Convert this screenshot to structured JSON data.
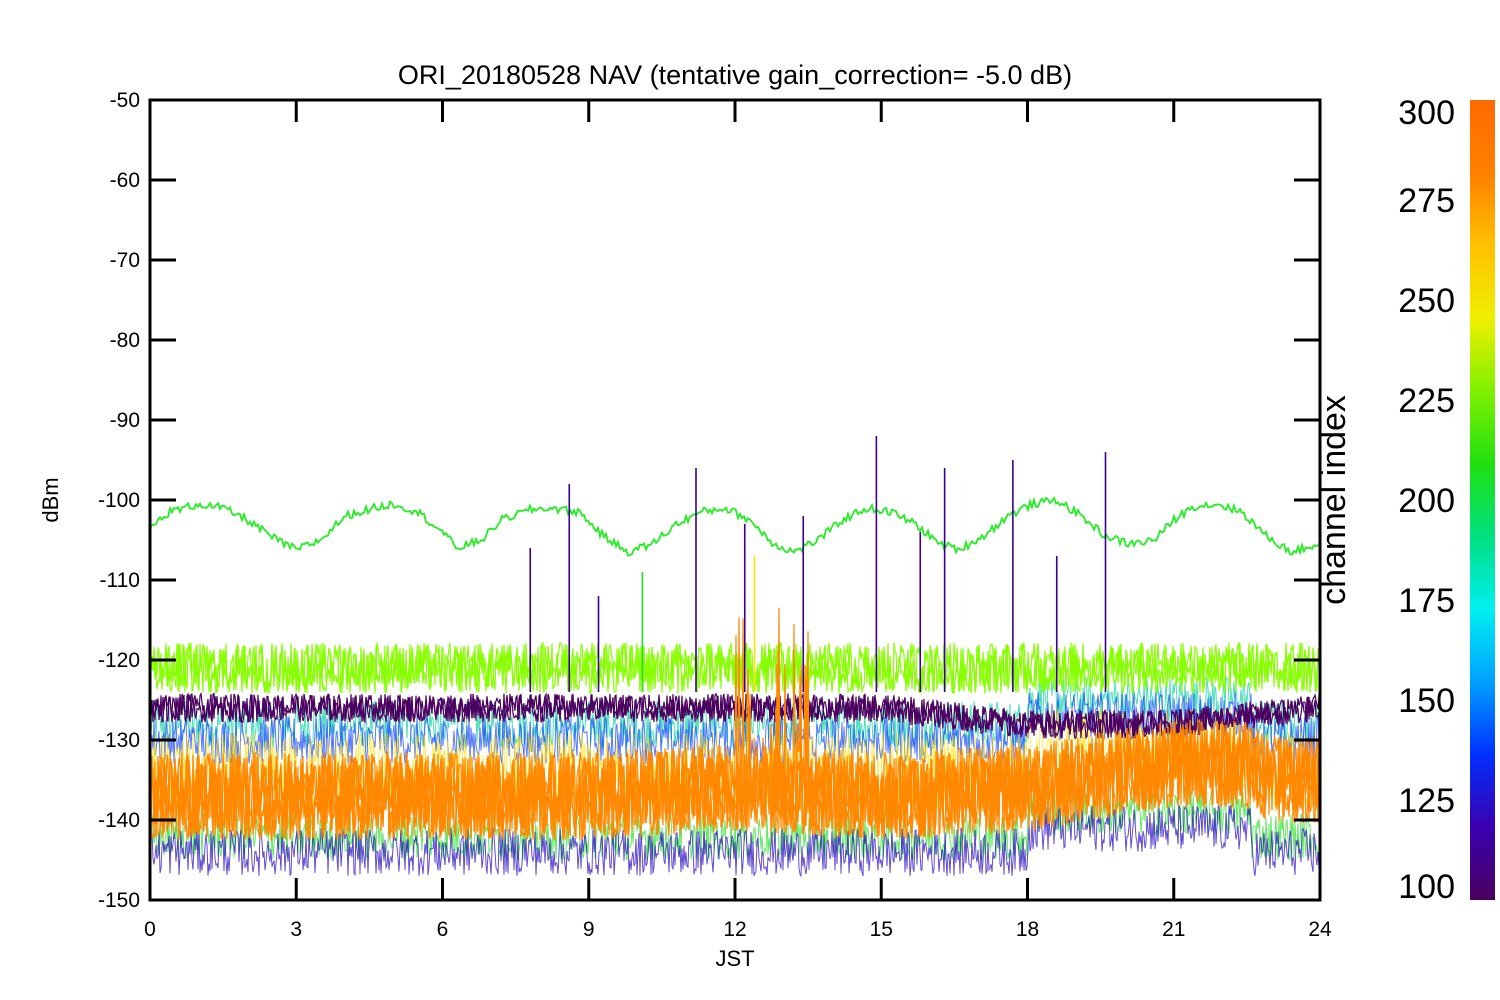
{
  "chart_data": {
    "type": "line",
    "title": "ORI_20180528 NAV (tentative gain_correction= -5.0 dB)",
    "xlabel": "JST",
    "ylabel": "dBm",
    "xlim": [
      0,
      24
    ],
    "ylim": [
      -150,
      -50
    ],
    "x_ticks": [
      0,
      3,
      6,
      9,
      12,
      15,
      18,
      21,
      24
    ],
    "x_tick_labels": [
      "0",
      "3",
      "6",
      "9",
      "12",
      "15",
      "18",
      "21",
      "24"
    ],
    "y_ticks": [
      -50,
      -60,
      -70,
      -80,
      -90,
      -100,
      -110,
      -120,
      -130,
      -140,
      -150
    ],
    "y_tick_labels": [
      "-50",
      "-60",
      "-70",
      "-80",
      "-90",
      "-100",
      "-110",
      "-120",
      "-130",
      "-140",
      "-150"
    ],
    "grid": false,
    "colorbar": {
      "label": "channel index",
      "range": [
        100,
        300
      ],
      "ticks": [
        100,
        125,
        150,
        175,
        200,
        225,
        250,
        275,
        300
      ],
      "tick_labels": [
        "100",
        "125",
        "150",
        "175",
        "200",
        "225",
        "250",
        "275",
        "300"
      ],
      "colors": [
        "#4b0060",
        "#3a00b0",
        "#0030ff",
        "#00a0ff",
        "#00f0f0",
        "#00e080",
        "#20e010",
        "#80f000",
        "#f0f000",
        "#ffc000",
        "#ff8000",
        "#ff6a00"
      ]
    },
    "series": [
      {
        "channel": 215,
        "color": "#22ee22",
        "description_values": "sinusoidal level",
        "x": [
          0,
          0.4,
          1.0,
          1.5,
          2.0,
          2.6,
          3.0,
          3.5,
          4.0,
          4.6,
          5.0,
          5.5,
          6.0,
          6.3,
          6.8,
          7.2,
          7.8,
          8.2,
          8.8,
          9.3,
          9.8,
          10.3,
          10.8,
          11.3,
          11.8,
          12.3,
          12.8,
          13.2,
          13.7,
          14.2,
          14.7,
          15.2,
          15.7,
          16.2,
          16.6,
          17.1,
          17.6,
          18.1,
          18.6,
          19.1,
          19.6,
          20.1,
          20.6,
          21.0,
          21.4,
          21.9,
          22.4,
          22.9,
          23.4,
          24.0
        ],
        "y": [
          -103.5,
          -101.5,
          -100.5,
          -101.0,
          -102.5,
          -105.0,
          -106.2,
          -105.0,
          -102.0,
          -101.0,
          -100.5,
          -101.5,
          -104.0,
          -106.0,
          -105.0,
          -102.5,
          -101.2,
          -101.0,
          -101.5,
          -104.5,
          -106.5,
          -105.5,
          -103.0,
          -101.5,
          -101.0,
          -102.5,
          -105.5,
          -106.5,
          -105.0,
          -102.5,
          -101.0,
          -101.5,
          -103.0,
          -105.5,
          -106.2,
          -104.5,
          -102.0,
          -100.5,
          -100.0,
          -102.0,
          -104.5,
          -105.5,
          -105.0,
          -102.5,
          -100.8,
          -100.5,
          -101.5,
          -104.5,
          -106.5,
          -105.5
        ]
      },
      {
        "channel": 250,
        "color": "#88ff00",
        "description_values": "band centre level",
        "x": [
          0,
          3,
          6,
          9,
          12,
          15,
          18,
          21,
          24
        ],
        "y": [
          -121,
          -121,
          -121,
          -121,
          -121,
          -121,
          -121,
          -121,
          -121
        ]
      },
      {
        "channel": 110,
        "color": "#4b0060",
        "description_values": "band centre level",
        "x": [
          0,
          3,
          6,
          9,
          12,
          15,
          18,
          21,
          24
        ],
        "y": [
          -126,
          -126,
          -126,
          -126,
          -126,
          -126,
          -128,
          -128,
          -126
        ]
      },
      {
        "channel": 290,
        "color": "#ff8800",
        "description_values": "band centre level",
        "x": [
          0,
          3,
          6,
          9,
          12,
          15,
          18,
          21,
          22.5,
          23,
          24
        ],
        "y": [
          -137,
          -137,
          -137,
          -137,
          -136,
          -137,
          -136,
          -133,
          -133,
          -135,
          -135
        ]
      }
    ],
    "spikes": [
      {
        "x": 7.8,
        "y": -106,
        "channel": 110
      },
      {
        "x": 8.6,
        "y": -98,
        "channel": 110
      },
      {
        "x": 9.2,
        "y": -112,
        "channel": 110
      },
      {
        "x": 10.1,
        "y": -109,
        "channel": 215
      },
      {
        "x": 11.2,
        "y": -96,
        "channel": 110
      },
      {
        "x": 12.2,
        "y": -103,
        "channel": 110
      },
      {
        "x": 12.4,
        "y": -107,
        "channel": 270
      },
      {
        "x": 13.4,
        "y": -102,
        "channel": 110
      },
      {
        "x": 14.9,
        "y": -92,
        "channel": 110
      },
      {
        "x": 15.8,
        "y": -104,
        "channel": 110
      },
      {
        "x": 16.3,
        "y": -96,
        "channel": 110
      },
      {
        "x": 17.7,
        "y": -95,
        "channel": 110
      },
      {
        "x": 18.6,
        "y": -107,
        "channel": 110
      },
      {
        "x": 19.6,
        "y": -94,
        "channel": 110
      }
    ]
  }
}
